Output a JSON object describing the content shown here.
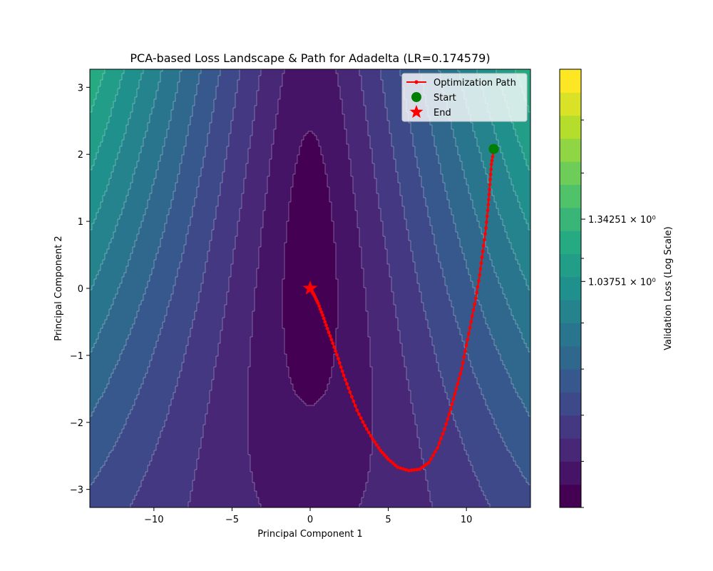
{
  "chart_data": {
    "type": "contour",
    "title": "PCA-based Loss Landscape & Path for Adadelta (LR=0.174579)",
    "xlabel": "Principal Component 1",
    "ylabel": "Principal Component 2",
    "xlim": [
      -14.1,
      14.1
    ],
    "ylim": [
      -3.27,
      3.27
    ],
    "x_ticks": [
      -10,
      -5,
      0,
      5,
      10
    ],
    "x_tick_labels": [
      "−10",
      "−5",
      "0",
      "5",
      "10"
    ],
    "y_ticks": [
      -3,
      -2,
      -1,
      0,
      1,
      2,
      3
    ],
    "y_tick_labels": [
      "−3",
      "−2",
      "−1",
      "0",
      "1",
      "2",
      "3"
    ],
    "colormap": "viridis",
    "colorbar": {
      "label": "Validation Loss (Log Scale)",
      "levels": 19,
      "labeled_ticks": [
        {
          "label": "1.34251 × 10⁰",
          "level": 12.5
        },
        {
          "label": "1.03751 × 10⁰",
          "level": 9.8
        }
      ],
      "minor_tick_levels": [
        0,
        2,
        4,
        6,
        8,
        10.8,
        14.5,
        16.8
      ]
    },
    "landscape": {
      "center_x": 0,
      "center_y": 0.3,
      "x_scale": 2.1,
      "y_scale": 2.55,
      "shear": 0.34,
      "level_spacing": 0.8
    },
    "legend": {
      "position": "upper right",
      "entries": [
        {
          "label": "Optimization Path",
          "marker": "line-dot",
          "color": "#ff0000"
        },
        {
          "label": "Start",
          "marker": "circle",
          "color": "#008000"
        },
        {
          "label": "End",
          "marker": "star",
          "color": "#ff0000"
        }
      ]
    },
    "series": [
      {
        "name": "Optimization Path",
        "color": "#ff0000",
        "x": [
          11.75,
          11.6,
          11.5,
          11.4,
          11.25,
          11.05,
          10.85,
          10.6,
          10.3,
          10.0,
          9.7,
          9.35,
          9.0,
          8.6,
          8.15,
          7.6,
          7.0,
          6.3,
          5.6,
          5.0,
          4.5,
          4.0,
          3.5,
          3.0,
          2.55,
          2.15,
          1.8,
          1.45,
          1.1,
          0.8,
          0.5,
          0.25,
          0.08,
          0.0
        ],
        "y": [
          2.08,
          1.85,
          1.55,
          1.25,
          0.9,
          0.55,
          0.2,
          -0.15,
          -0.5,
          -0.85,
          -1.2,
          -1.5,
          -1.8,
          -2.1,
          -2.38,
          -2.6,
          -2.7,
          -2.72,
          -2.67,
          -2.55,
          -2.42,
          -2.25,
          -2.05,
          -1.82,
          -1.55,
          -1.3,
          -1.05,
          -0.82,
          -0.6,
          -0.4,
          -0.22,
          -0.1,
          -0.03,
          0.0
        ]
      },
      {
        "name": "Start",
        "color": "#008000",
        "x": [
          11.75
        ],
        "y": [
          2.08
        ]
      },
      {
        "name": "End",
        "color": "#ff0000",
        "x": [
          0.0
        ],
        "y": [
          0.0
        ]
      }
    ]
  }
}
